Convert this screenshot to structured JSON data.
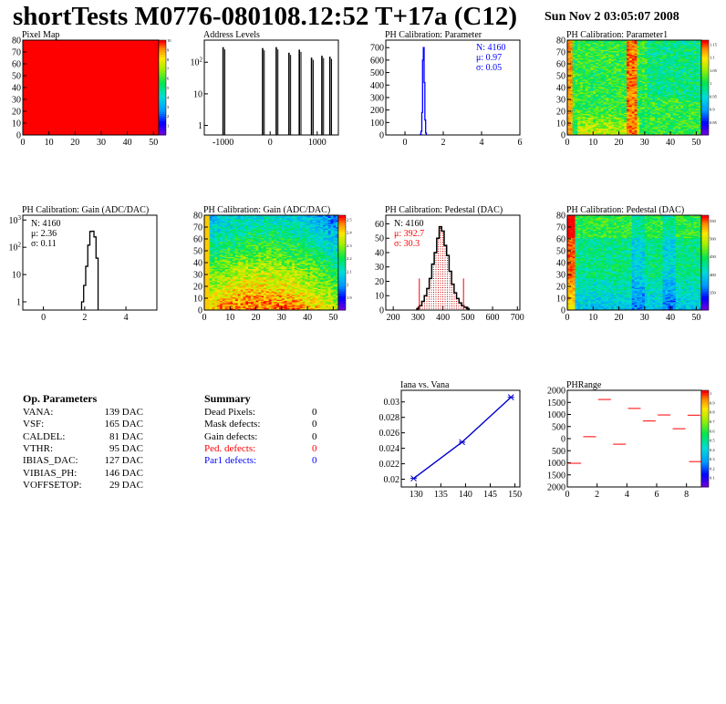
{
  "header": {
    "title": "shortTests M0776-080108.12:52 T+17a (C12)",
    "date": "Sun Nov  2 03:05:07 2008"
  },
  "colors": {
    "hist_blue": "#0000ff",
    "hist_black": "#000000",
    "red": "#ff0000",
    "line_blue": "#0000cc"
  },
  "chart_data": [
    {
      "id": "pixel_map",
      "type": "heatmap",
      "title": "Pixel Map",
      "xlim": [
        0,
        52
      ],
      "ylim": [
        0,
        80
      ],
      "xticks": [
        0,
        10,
        20,
        30,
        40,
        50
      ],
      "yticks": [
        0,
        10,
        20,
        30,
        40,
        50,
        60,
        70,
        80
      ],
      "uniform_value": 10,
      "colorbar": {
        "min": 0,
        "max": 10,
        "ticks": [
          "1",
          "2",
          "3",
          "4",
          "5",
          "6",
          "7",
          "8",
          "9",
          "10"
        ]
      }
    },
    {
      "id": "address_levels",
      "type": "bar",
      "title": "Address Levels",
      "log_y": true,
      "xlim": [
        -1400,
        1450
      ],
      "ylim": [
        0.5,
        500
      ],
      "xticks": [
        -1000,
        0,
        1000
      ],
      "xtick_labels": [
        "-1000",
        "0",
        "1000"
      ],
      "yticks": [
        1,
        10,
        100
      ],
      "ytick_labels": [
        "1",
        "10",
        "10²"
      ],
      "spikes": [
        {
          "x": -1000,
          "y": 300
        },
        {
          "x": -160,
          "y": 280
        },
        {
          "x": 130,
          "y": 300
        },
        {
          "x": 400,
          "y": 200
        },
        {
          "x": 620,
          "y": 250
        },
        {
          "x": 880,
          "y": 140
        },
        {
          "x": 1100,
          "y": 160
        },
        {
          "x": 1270,
          "y": 150
        }
      ]
    },
    {
      "id": "ph_param",
      "type": "bar",
      "title": "PH Calibration: Parameter",
      "xlim": [
        -1,
        6
      ],
      "ylim": [
        0,
        760
      ],
      "xticks": [
        0,
        2,
        4,
        6
      ],
      "yticks": [
        0,
        100,
        200,
        300,
        400,
        500,
        600,
        700
      ],
      "stats": {
        "n": "N: 4160",
        "mu": "μ: 0.97",
        "sigma": "σ: 0.05"
      },
      "bins": [
        {
          "x": 0.82,
          "y": 5
        },
        {
          "x": 0.86,
          "y": 30
        },
        {
          "x": 0.9,
          "y": 180
        },
        {
          "x": 0.94,
          "y": 600
        },
        {
          "x": 0.98,
          "y": 700
        },
        {
          "x": 1.02,
          "y": 420
        },
        {
          "x": 1.06,
          "y": 120
        },
        {
          "x": 1.1,
          "y": 15
        }
      ]
    },
    {
      "id": "ph_param1",
      "type": "heatmap",
      "title": "PH Calibration: Parameter1",
      "xlim": [
        0,
        52
      ],
      "ylim": [
        0,
        80
      ],
      "xticks": [
        0,
        10,
        20,
        30,
        40,
        50
      ],
      "yticks": [
        0,
        10,
        20,
        30,
        40,
        50,
        60,
        70,
        80
      ],
      "colorbar": {
        "min": 0.85,
        "max": 1.15,
        "ticks": [
          "0.85",
          "0.9",
          "0.95",
          "1",
          "1.05",
          "1.1",
          "1.15"
        ]
      }
    },
    {
      "id": "gain_1d",
      "type": "bar",
      "title": "PH Calibration: Gain (ADC/DAC)",
      "log_y": true,
      "xlim": [
        -1,
        5.5
      ],
      "ylim": [
        0.5,
        1500
      ],
      "xticks": [
        0,
        2,
        4
      ],
      "yticks": [
        1,
        10,
        100,
        1000
      ],
      "ytick_labels": [
        "1",
        "10",
        "10²",
        "10³"
      ],
      "stats": {
        "n": "N: 4160",
        "mu": "μ: 2.36",
        "sigma": "σ: 0.11"
      },
      "bins": [
        {
          "x": 1.9,
          "y": 1
        },
        {
          "x": 2.0,
          "y": 4
        },
        {
          "x": 2.1,
          "y": 20
        },
        {
          "x": 2.2,
          "y": 120
        },
        {
          "x": 2.3,
          "y": 380
        },
        {
          "x": 2.4,
          "y": 390
        },
        {
          "x": 2.5,
          "y": 240
        },
        {
          "x": 2.6,
          "y": 40
        }
      ]
    },
    {
      "id": "gain_2d",
      "type": "heatmap",
      "title": "PH Calibration: Gain (ADC/DAC)",
      "xlim": [
        0,
        52
      ],
      "ylim": [
        0,
        80
      ],
      "xticks": [
        0,
        10,
        20,
        30,
        40,
        50
      ],
      "yticks": [
        0,
        10,
        20,
        30,
        40,
        50,
        60,
        70,
        80
      ],
      "colorbar": {
        "min": 1.85,
        "max": 2.55,
        "ticks": [
          "1.9",
          "2",
          "2.1",
          "2.2",
          "2.3",
          "2.4",
          "2.5"
        ]
      }
    },
    {
      "id": "pedestal_1d",
      "type": "bar",
      "title": "PH Calibration: Pedestal (DAC)",
      "xlim": [
        170,
        710
      ],
      "ylim": [
        0,
        66
      ],
      "xticks": [
        200,
        300,
        400,
        500,
        600,
        700
      ],
      "yticks": [
        0,
        10,
        20,
        30,
        40,
        50,
        60
      ],
      "stats": {
        "n": "N: 4160",
        "mu": "μ: 392.7",
        "sigma": "σ: 30.3"
      },
      "cut_lines": [
        305,
        483
      ],
      "bins": [
        {
          "x": 300,
          "y": 1
        },
        {
          "x": 310,
          "y": 3
        },
        {
          "x": 320,
          "y": 6
        },
        {
          "x": 330,
          "y": 10
        },
        {
          "x": 340,
          "y": 15
        },
        {
          "x": 350,
          "y": 22
        },
        {
          "x": 360,
          "y": 32
        },
        {
          "x": 370,
          "y": 40
        },
        {
          "x": 380,
          "y": 50
        },
        {
          "x": 390,
          "y": 58
        },
        {
          "x": 400,
          "y": 55
        },
        {
          "x": 410,
          "y": 45
        },
        {
          "x": 420,
          "y": 38
        },
        {
          "x": 430,
          "y": 27
        },
        {
          "x": 440,
          "y": 18
        },
        {
          "x": 450,
          "y": 12
        },
        {
          "x": 460,
          "y": 8
        },
        {
          "x": 470,
          "y": 5
        },
        {
          "x": 480,
          "y": 3
        },
        {
          "x": 490,
          "y": 2
        },
        {
          "x": 500,
          "y": 1
        }
      ]
    },
    {
      "id": "pedestal_2d",
      "type": "heatmap",
      "title": "PH Calibration: Pedestal (DAC)",
      "xlim": [
        0,
        52
      ],
      "ylim": [
        0,
        80
      ],
      "xticks": [
        0,
        10,
        20,
        30,
        40,
        50
      ],
      "yticks": [
        0,
        10,
        20,
        30,
        40,
        50,
        60,
        70,
        80
      ],
      "colorbar": {
        "min": 340,
        "max": 560,
        "ticks": [
          "350",
          "400",
          "450",
          "500",
          "550"
        ]
      }
    },
    {
      "id": "iana_vana",
      "type": "line",
      "title": "Iana vs. Vana",
      "xlim": [
        127,
        151
      ],
      "ylim": [
        0.019,
        0.0315
      ],
      "xticks": [
        130,
        135,
        140,
        145,
        150
      ],
      "yticks": [
        0.02,
        0.022,
        0.024,
        0.026,
        0.028,
        0.03
      ],
      "x": [
        129.5,
        139.3,
        149.2
      ],
      "y": [
        0.0201,
        0.0248,
        0.0306
      ]
    },
    {
      "id": "ph_range",
      "type": "scatter",
      "title": "PHRange",
      "xlim": [
        0,
        9
      ],
      "ylim": [
        -2000,
        2000
      ],
      "xticks": [
        0,
        2,
        4,
        6,
        8
      ],
      "yticks": [
        -2000,
        -1500,
        -1000,
        -500,
        0,
        500,
        1000,
        1500,
        2000
      ],
      "ytick_labels": [
        "2000",
        "1500",
        "1000",
        "500",
        "0",
        "500",
        "1000",
        "1500",
        "2000"
      ],
      "colorbar": {
        "min": 0,
        "max": 1,
        "ticks": [
          "0.1",
          "0.2",
          "0.3",
          "0.4",
          "0.5",
          "0.6",
          "0.7",
          "0.8",
          "0.9",
          "1"
        ]
      },
      "segments": [
        {
          "x": 0.5,
          "y": -1020
        },
        {
          "x": 1.5,
          "y": 80
        },
        {
          "x": 2.5,
          "y": 1620
        },
        {
          "x": 3.5,
          "y": -230
        },
        {
          "x": 4.5,
          "y": 1250
        },
        {
          "x": 5.5,
          "y": 730
        },
        {
          "x": 6.5,
          "y": 980
        },
        {
          "x": 7.5,
          "y": 410
        },
        {
          "x": 8.5,
          "y": 970
        },
        {
          "x": 8.6,
          "y": -950
        }
      ]
    }
  ],
  "op_parameters": {
    "heading": "Op. Parameters",
    "rows": [
      {
        "name": "VANA:",
        "value": "139 DAC"
      },
      {
        "name": "VSF:",
        "value": "165 DAC"
      },
      {
        "name": "CALDEL:",
        "value": "81 DAC"
      },
      {
        "name": "VTHR:",
        "value": "95 DAC"
      },
      {
        "name": "IBIAS_DAC:",
        "value": "127 DAC"
      },
      {
        "name": "VIBIAS_PH:",
        "value": "146 DAC"
      },
      {
        "name": "VOFFSETOP:",
        "value": "29 DAC"
      }
    ]
  },
  "summary": {
    "heading": "Summary",
    "rows": [
      {
        "name": "Dead Pixels:",
        "value": "0",
        "color": "#000000"
      },
      {
        "name": "Mask defects:",
        "value": "0",
        "color": "#000000"
      },
      {
        "name": "Gain defects:",
        "value": "0",
        "color": "#000000"
      },
      {
        "name": "Ped. defects:",
        "value": "0",
        "color": "#ff0000"
      },
      {
        "name": "Par1 defects:",
        "value": "0",
        "color": "#0000ff"
      }
    ]
  }
}
